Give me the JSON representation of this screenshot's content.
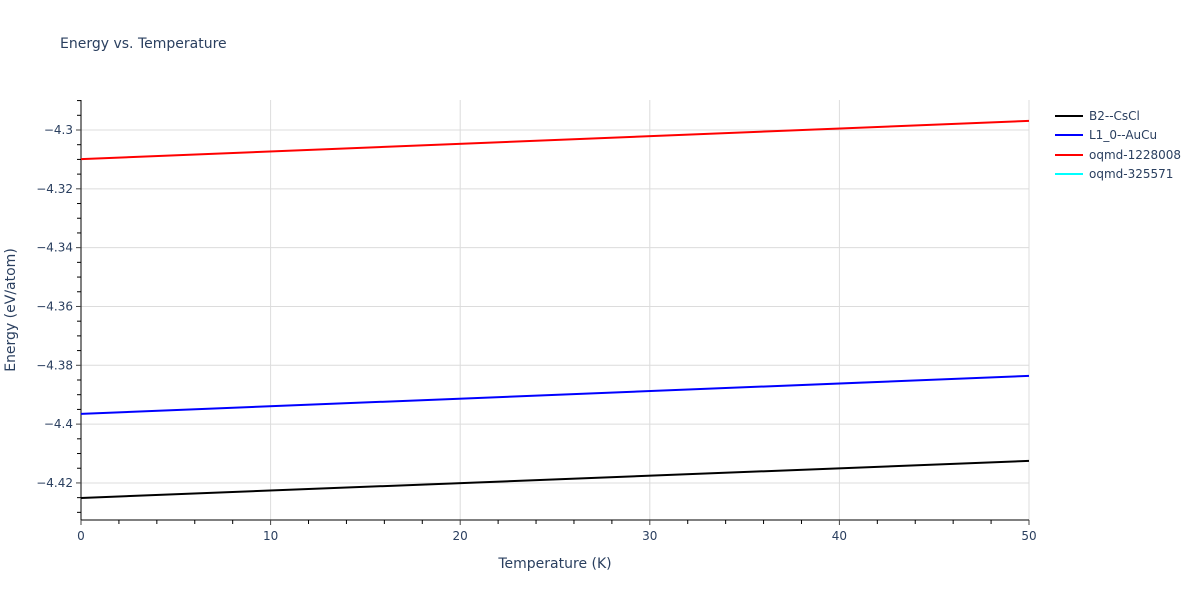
{
  "chart_data": {
    "type": "line",
    "title": "Energy vs. Temperature",
    "xlabel": "Temperature (K)",
    "ylabel": "Energy (eV/atom)",
    "xlim": [
      0,
      50
    ],
    "ylim": [
      -4.4326,
      -4.2898
    ],
    "x_ticks": [
      0,
      10,
      20,
      30,
      40,
      50
    ],
    "x_tick_labels": [
      "0",
      "10",
      "20",
      "30",
      "40",
      "50"
    ],
    "y_ticks": [
      -4.3,
      -4.32,
      -4.34,
      -4.36,
      -4.38,
      -4.4,
      -4.42
    ],
    "y_tick_labels": [
      "−4.3",
      "−4.32",
      "−4.34",
      "−4.36",
      "−4.38",
      "−4.4",
      "−4.42"
    ],
    "grid": true,
    "legend_position": "right",
    "x": [
      0,
      50
    ],
    "series": [
      {
        "name": "B2--CsCl",
        "color": "#000000",
        "values": [
          -4.4251,
          -4.4125
        ]
      },
      {
        "name": "L1_0--AuCu",
        "color": "#0000ff",
        "values": [
          -4.3965,
          -4.3836
        ]
      },
      {
        "name": "oqmd-1228008",
        "color": "#ff0000",
        "values": [
          -4.3099,
          -4.2969
        ]
      },
      {
        "name": "oqmd-325571",
        "color": "#00ffff",
        "values": []
      }
    ]
  },
  "legend": {
    "items": [
      {
        "label": "B2--CsCl",
        "color": "#000000"
      },
      {
        "label": "L1_0--AuCu",
        "color": "#0000ff"
      },
      {
        "label": "oqmd-1228008",
        "color": "#ff0000"
      },
      {
        "label": "oqmd-325571",
        "color": "#00ffff"
      }
    ]
  }
}
